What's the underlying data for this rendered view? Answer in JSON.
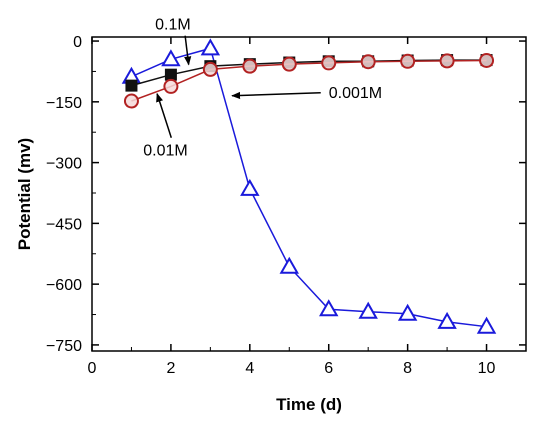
{
  "chart_data": {
    "type": "line",
    "title": "",
    "xlabel": "Time (d)",
    "ylabel": "Potential (mv)",
    "xlim": [
      0,
      11
    ],
    "ylim": [
      -765,
      10
    ],
    "x_ticks": [
      0,
      2,
      4,
      6,
      8,
      10
    ],
    "y_ticks": [
      0,
      -150,
      -300,
      -450,
      -600,
      -750
    ],
    "grid": false,
    "legend": "none",
    "series": [
      {
        "marker": "triangle-open",
        "color": "#1a1adb",
        "x": [
          1,
          2,
          3,
          4,
          5,
          6,
          7,
          8,
          9,
          10
        ],
        "y": [
          -88,
          -45,
          -18,
          -365,
          -557,
          -662,
          -668,
          -673,
          -693,
          -705
        ]
      },
      {
        "marker": "square-filled",
        "color": "#111111",
        "x": [
          1,
          2,
          3,
          4,
          5,
          6,
          7,
          8,
          9,
          10
        ],
        "y": [
          -110,
          -83,
          -62,
          -57,
          -53,
          -50,
          -50,
          -48,
          -47,
          -47
        ]
      },
      {
        "marker": "circle-open",
        "color": "#b22222",
        "x": [
          1,
          2,
          3,
          4,
          5,
          6,
          7,
          8,
          9,
          10
        ],
        "y": [
          -148,
          -112,
          -70,
          -62,
          -57,
          -54,
          -51,
          -50,
          -49,
          -48
        ]
      }
    ],
    "annotations": [
      {
        "text": "0.1M",
        "x": 2.45,
        "y": -58,
        "text_x": 1.6,
        "text_y": 28
      },
      {
        "text": "0.001M",
        "x": 3.55,
        "y": -135,
        "text_x": 6.0,
        "text_y": -140
      },
      {
        "text": "0.01M",
        "x": 1.65,
        "y": -130,
        "text_x": 1.3,
        "text_y": -283
      }
    ]
  }
}
